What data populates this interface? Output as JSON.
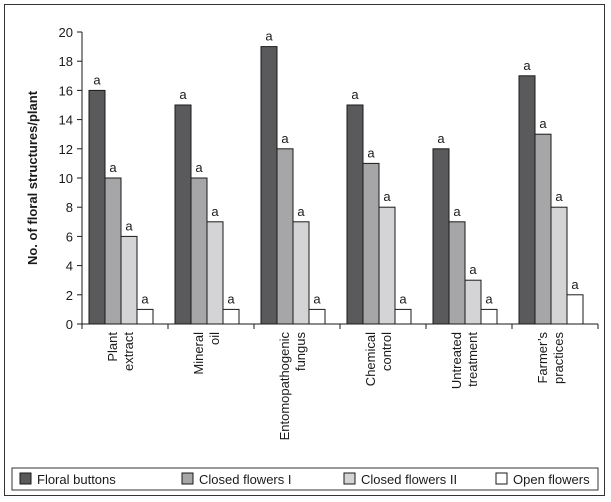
{
  "chart_data": {
    "type": "bar",
    "title": "",
    "ylabel": "No. of floral structures/plant",
    "xlabel": "",
    "ylim": [
      0,
      20
    ],
    "yticks": [
      "0",
      "2",
      "4",
      "6",
      "8",
      "10",
      "12",
      "14",
      "16",
      "18",
      "20"
    ],
    "grid": false,
    "legend_position": "bottom",
    "categories": [
      [
        "Plant",
        "extract"
      ],
      [
        "Mineral",
        "oil"
      ],
      [
        "Entomopathogenic",
        "fungus"
      ],
      [
        "Chemical",
        "control"
      ],
      [
        "Untreated",
        "treatment"
      ],
      [
        "Farmer’s",
        "practices"
      ]
    ],
    "series": [
      {
        "name": "Floral buttons",
        "color": "#5a5a5c",
        "values": [
          16,
          15,
          19,
          15,
          12,
          17
        ],
        "labels": [
          "a",
          "a",
          "a",
          "a",
          "a",
          "a"
        ]
      },
      {
        "name": "Closed flowers I",
        "color": "#a6a6a8",
        "values": [
          10,
          10,
          12,
          11,
          7,
          13
        ],
        "labels": [
          "a",
          "a",
          "a",
          "a",
          "a",
          "a"
        ]
      },
      {
        "name": "Closed flowers II",
        "color": "#d4d4d6",
        "values": [
          6,
          7,
          7,
          8,
          3,
          8
        ],
        "labels": [
          "a",
          "a",
          "a",
          "a",
          "a",
          "a"
        ]
      },
      {
        "name": "Open flowers",
        "color": "#ffffff",
        "values": [
          1,
          1,
          1,
          1,
          1,
          2
        ],
        "labels": [
          "a",
          "a",
          "a",
          "a",
          "a",
          "a"
        ]
      }
    ]
  }
}
